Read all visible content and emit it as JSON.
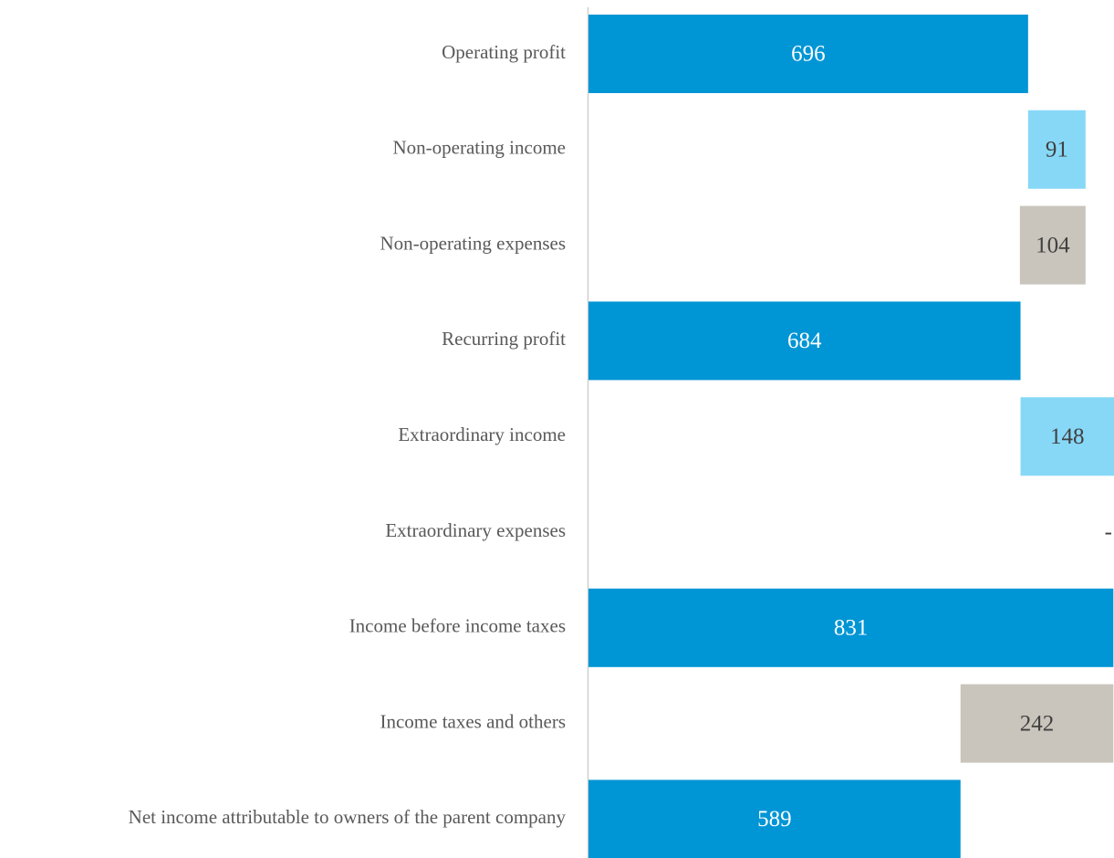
{
  "chart_data": {
    "type": "waterfall",
    "categories": [
      "Operating profit",
      "Non-operating income",
      "Non-operating expenses",
      "Recurring profit",
      "Extraordinary income ",
      "Extraordinary expenses",
      "Income before income taxes",
      "Income taxes and others",
      "Net income attributable to owners of the parent company"
    ],
    "values": [
      696,
      91,
      104,
      684,
      148,
      0,
      831,
      242,
      589
    ],
    "value_labels": [
      "696",
      "91",
      "104",
      "684",
      "148",
      "-",
      "831",
      "242",
      "589"
    ],
    "kinds": [
      "total",
      "increase",
      "decrease",
      "total",
      "increase",
      "decrease",
      "total",
      "decrease",
      "total"
    ],
    "colors": {
      "total": "#0095d5",
      "increase": "#87d8f7",
      "decrease": "#c9c5bc"
    }
  }
}
